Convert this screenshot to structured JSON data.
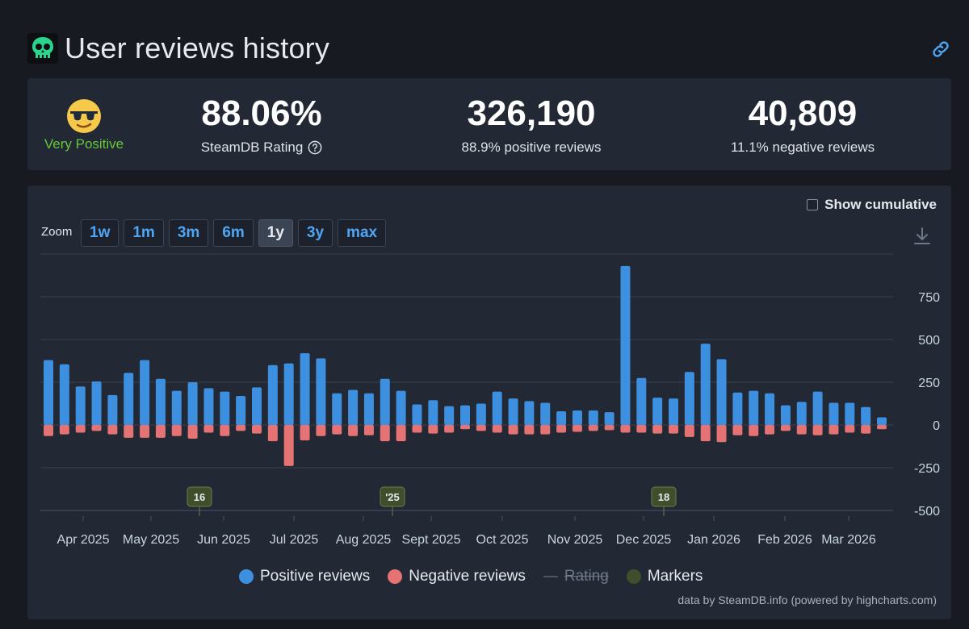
{
  "header": {
    "title": "User reviews history",
    "game_icon": "skull-icon",
    "link_icon": "link-icon"
  },
  "stats": {
    "verdict": "Very Positive",
    "rating_value": "88.06%",
    "rating_label": "SteamDB Rating",
    "positive_value": "326,190",
    "positive_label": "88.9% positive reviews",
    "negative_value": "40,809",
    "negative_label": "11.1% negative reviews"
  },
  "controls": {
    "show_cumulative": "Show cumulative",
    "zoom_label": "Zoom",
    "zoom_options": [
      "1w",
      "1m",
      "3m",
      "6m",
      "1y",
      "3y",
      "max"
    ],
    "zoom_selected": "1y"
  },
  "colors": {
    "positive": "#3d8fe0",
    "negative": "#e57373",
    "marker": "#3f4f2c",
    "verdict": "#66c83a",
    "accent": "#4ea6f5"
  },
  "chart_data": {
    "type": "bar",
    "title": "User reviews history",
    "ylim": [
      -500,
      1000
    ],
    "yticks": [
      -500,
      -250,
      0,
      250,
      500,
      750
    ],
    "ytick_labels": [
      "-500",
      "-250",
      "0",
      "250",
      "500",
      "750"
    ],
    "x_month_labels": [
      "Apr 2025",
      "May 2025",
      "Jun 2025",
      "Jul 2025",
      "Aug 2025",
      "Sept 2025",
      "Oct 2025",
      "Nov 2025",
      "Dec 2025",
      "Jan 2026",
      "Feb 2026",
      "Mar 2026"
    ],
    "series": [
      {
        "name": "Positive reviews",
        "values": [
          380,
          355,
          225,
          255,
          175,
          305,
          380,
          270,
          200,
          250,
          215,
          195,
          170,
          220,
          350,
          360,
          420,
          390,
          185,
          205,
          185,
          270,
          200,
          120,
          145,
          110,
          115,
          125,
          195,
          155,
          140,
          130,
          80,
          85,
          85,
          75,
          930,
          275,
          160,
          155,
          310,
          475,
          385,
          190,
          200,
          185,
          115,
          135,
          195,
          130,
          130,
          105,
          45
        ]
      },
      {
        "name": "Negative reviews",
        "values": [
          -65,
          -55,
          -45,
          -35,
          -55,
          -75,
          -75,
          -75,
          -65,
          -80,
          -45,
          -65,
          -35,
          -50,
          -95,
          -240,
          -90,
          -65,
          -55,
          -65,
          -60,
          -95,
          -95,
          -45,
          -50,
          -45,
          -25,
          -35,
          -45,
          -55,
          -55,
          -55,
          -45,
          -40,
          -35,
          -30,
          -45,
          -45,
          -50,
          -50,
          -70,
          -95,
          -100,
          -60,
          -65,
          -55,
          -35,
          -55,
          -60,
          -55,
          -45,
          -50,
          -25
        ]
      }
    ],
    "markers": [
      "16",
      "'25",
      "18"
    ],
    "legend": [
      "Positive reviews",
      "Negative reviews",
      "Rating",
      "Markers"
    ],
    "credits": "data by SteamDB.info (powered by highcharts.com)"
  }
}
